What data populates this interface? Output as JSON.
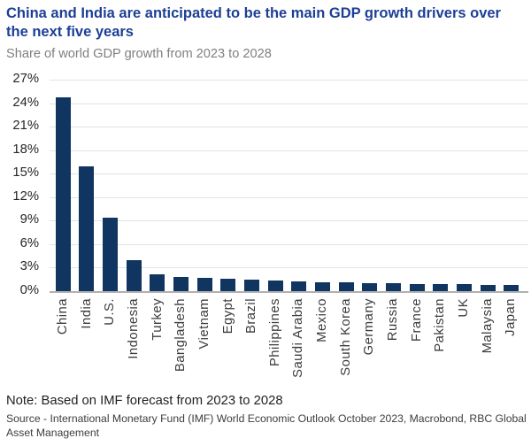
{
  "header": {
    "title": "China and India are anticipated to be the main GDP growth drivers over the next five years",
    "subtitle": "Share of world GDP growth from 2023 to 2028"
  },
  "chart_data": {
    "type": "bar",
    "categories": [
      "China",
      "India",
      "U.S.",
      "Indonesia",
      "Turkey",
      "Bangladesh",
      "Vietnam",
      "Egypt",
      "Brazil",
      "Philippines",
      "Saudi Arabia",
      "Mexico",
      "South Korea",
      "Germany",
      "Russia",
      "France",
      "Pakistan",
      "UK",
      "Malaysia",
      "Japan"
    ],
    "values": [
      24.7,
      15.9,
      9.35,
      3.95,
      2.1,
      1.85,
      1.7,
      1.55,
      1.45,
      1.35,
      1.25,
      1.15,
      1.1,
      1.0,
      1.0,
      0.95,
      0.9,
      0.85,
      0.8,
      0.75
    ],
    "title": "Share of world GDP growth from 2023 to 2028",
    "xlabel": "",
    "ylabel": "",
    "ylim": [
      0,
      27
    ],
    "y_tick_step": 3,
    "y_tick_labels": [
      "27%",
      "24%",
      "21%",
      "18%",
      "15%",
      "12%",
      "9%",
      "6%",
      "3%",
      "0%"
    ],
    "grid": true,
    "legend": false
  },
  "footer": {
    "note": "Note: Based on IMF forecast from 2023 to 2028",
    "source": "Source - International Monetary Fund (IMF) World Economic Outlook October 2023, Macrobond, RBC Global Asset Management"
  },
  "colors": {
    "title_blue": "#1c3f96",
    "subtitle_gray": "#7f7f7f",
    "bar_navy": "#0f3560",
    "gridline_gray": "#e3e3e3",
    "axis_gray": "#b0b0b0"
  }
}
